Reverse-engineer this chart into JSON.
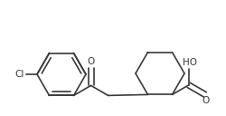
{
  "bg_color": "#ffffff",
  "line_color": "#3a3a3a",
  "line_width": 1.2,
  "font_size": 7.5,
  "figsize": [
    2.51,
    1.28
  ],
  "dpi": 100,
  "xlim": [
    0,
    251
  ],
  "ylim": [
    0,
    128
  ]
}
